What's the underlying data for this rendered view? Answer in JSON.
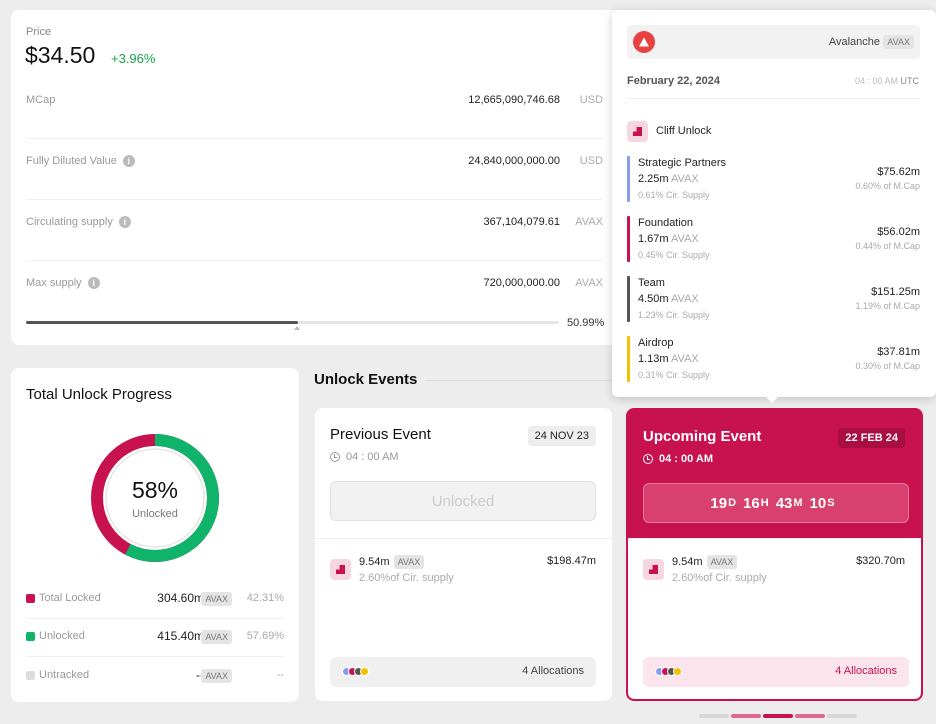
{
  "price": {
    "label": "Price",
    "value": "$34.50",
    "change": "+3.96%",
    "metrics": [
      {
        "label": "MCap",
        "value": "12,665,090,746.68",
        "unit": "USD",
        "info": false
      },
      {
        "label": "Fully Diluted Value",
        "value": "24,840,000,000.00",
        "unit": "USD",
        "info": true
      },
      {
        "label": "Circulating supply",
        "value": "367,104,079.61",
        "unit": "AVAX",
        "info": true
      },
      {
        "label": "Max supply",
        "value": "720,000,000.00",
        "unit": "AVAX",
        "info": true
      }
    ],
    "supply_percent": "50.99%",
    "supply_fraction": 0.5099
  },
  "progress": {
    "title": "Total Unlock Progress",
    "percent": "58%",
    "sub": "Unlocked",
    "unlocked_fraction": 0.5769,
    "legend": [
      {
        "label": "Total Locked",
        "amount": "304.60m",
        "token": "AVAX",
        "pct": "42.31%",
        "color": "#c8124f"
      },
      {
        "label": "Unlocked",
        "amount": "415.40m",
        "token": "AVAX",
        "pct": "57.69%",
        "color": "#0fb36a"
      },
      {
        "label": "Untracked",
        "amount": "--",
        "token": "AVAX",
        "pct": "--",
        "color": "#dddddd"
      }
    ]
  },
  "events": {
    "title": "Unlock Events",
    "previous": {
      "title": "Previous Event",
      "date": "24 NOV 23",
      "time": "04 : 00 AM",
      "action": "Unlocked",
      "amount": "9.54m",
      "token": "AVAX",
      "supply": "2.60%of Cir. supply",
      "usd": "$198.47m",
      "allocations": "4 Allocations"
    },
    "upcoming": {
      "title": "Upcoming Event",
      "date": "22 FEB 24",
      "time": "04 : 00 AM",
      "countdown": {
        "d": "19",
        "h": "16",
        "m": "43",
        "s": "10",
        "d_unit": "D",
        "h_unit": "H",
        "m_unit": "M",
        "s_unit": "S"
      },
      "amount": "9.54m",
      "token": "AVAX",
      "supply": "2.60%of Cir. supply",
      "usd": "$320.70m",
      "allocations": "4 Allocations"
    },
    "dot_colors": [
      "#8b9cf0",
      "#c8124f",
      "#555555",
      "#f2c100"
    ]
  },
  "tooltip": {
    "coin": "Avalanche",
    "ticker": "AVAX",
    "date": "February 22, 2024",
    "time": "04 : 00 AM",
    "tz": "UTC",
    "type": "Cliff Unlock",
    "rows": [
      {
        "name": "Strategic Partners",
        "amount": "2.25m",
        "unit": "AVAX",
        "sub": "0.61% Cir. Supply",
        "usd": "$75.62m",
        "mcap": "0.60% of M.Cap",
        "color": "#8b9cf0"
      },
      {
        "name": "Foundation",
        "amount": "1.67m",
        "unit": "AVAX",
        "sub": "0.45% Cir. Supply",
        "usd": "$56.02m",
        "mcap": "0.44% of M.Cap",
        "color": "#c8124f"
      },
      {
        "name": "Team",
        "amount": "4.50m",
        "unit": "AVAX",
        "sub": "1.23% Cir. Supply",
        "usd": "$151.25m",
        "mcap": "1.19% of M.Cap",
        "color": "#555555"
      },
      {
        "name": "Airdrop",
        "amount": "1.13m",
        "unit": "AVAX",
        "sub": "0.31% Cir. Supply",
        "usd": "$37.81m",
        "mcap": "0.30% of M.Cap",
        "color": "#f2c100"
      }
    ]
  },
  "pager_colors": [
    "#d6d6d6",
    "#e06a8f",
    "#c8124f",
    "#e06a8f",
    "#d6d6d6"
  ]
}
